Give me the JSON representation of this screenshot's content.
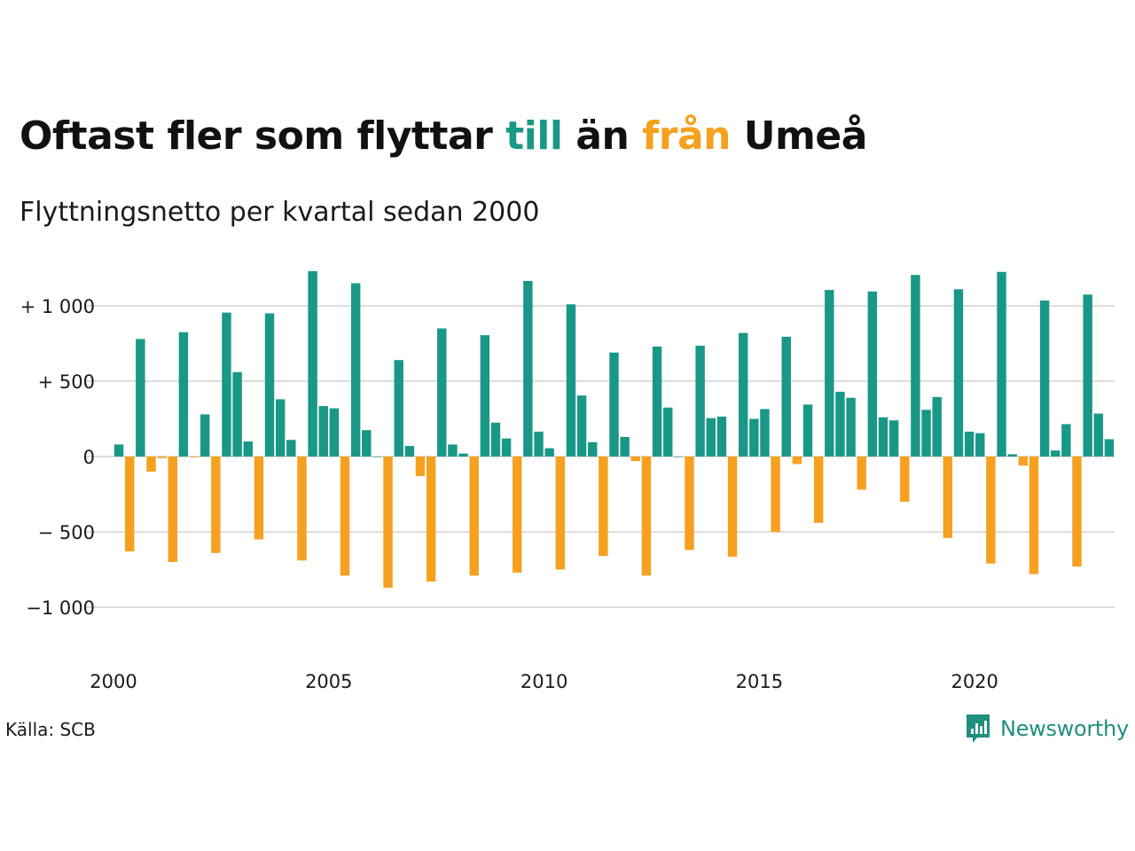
{
  "header": {
    "title_parts": [
      "Oftast fler som flyttar ",
      "till",
      " än ",
      "från",
      " Umeå"
    ],
    "subtitle": "Flyttningsnetto per kvartal sedan 2000"
  },
  "footer": {
    "source": "Källa: SCB",
    "brand": "Newsworthy"
  },
  "colors": {
    "positive": "#1a9887",
    "negative": "#f5a11f",
    "gridline": "#dddddd",
    "title": "#111111"
  },
  "icons": {
    "logo": "newsworthy-logo-icon"
  },
  "chart_data": {
    "type": "bar",
    "title": "Oftast fler som flyttar till än från Umeå",
    "subtitle": "Flyttningsnetto per kvartal sedan 2000",
    "xlabel": "",
    "ylabel": "",
    "ylim": [
      -1300,
      1250
    ],
    "y_ticks": [
      {
        "value": 1000,
        "label": "+ 1 000"
      },
      {
        "value": 500,
        "label": "+   500"
      },
      {
        "value": 0,
        "label": "0"
      },
      {
        "value": -500,
        "label": "−  500"
      },
      {
        "value": -1000,
        "label": "−1 000"
      }
    ],
    "x_ticks": [
      {
        "year": 2000,
        "label": "2000"
      },
      {
        "year": 2005,
        "label": "2005"
      },
      {
        "year": 2010,
        "label": "2010"
      },
      {
        "year": 2015,
        "label": "2015"
      },
      {
        "year": 2020,
        "label": "2020"
      }
    ],
    "start_year": 2000,
    "grid": true,
    "legend": "none",
    "series": [
      {
        "values": [
          80,
          -630,
          780,
          -100,
          -10,
          -700,
          825,
          -5,
          280,
          -640,
          955,
          560,
          100,
          -550,
          950,
          380,
          110,
          -690,
          1230,
          335,
          320,
          -790,
          1150,
          175,
          0,
          -870,
          640,
          70,
          -130,
          -830,
          850,
          80,
          20,
          -790,
          805,
          225,
          120,
          -770,
          1165,
          165,
          55,
          -750,
          1010,
          405,
          95,
          -660,
          690,
          130,
          -30,
          -790,
          730,
          325,
          0,
          -620,
          735,
          255,
          265,
          -665,
          820,
          250,
          315,
          -500,
          795,
          -50,
          345,
          -440,
          1105,
          430,
          390,
          -220,
          1095,
          260,
          240,
          -300,
          1205,
          310,
          395,
          -540,
          1110,
          165,
          155,
          -710,
          1225,
          15,
          -60,
          -780,
          1035,
          40,
          215,
          -730,
          1075,
          285,
          115
        ]
      }
    ]
  }
}
